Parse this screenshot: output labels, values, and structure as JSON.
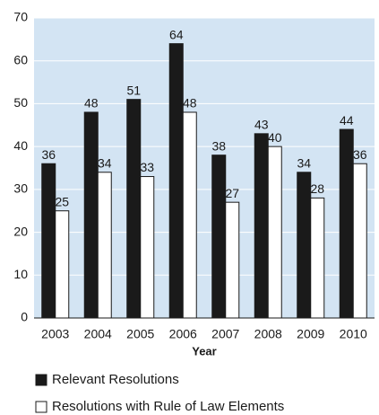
{
  "chart_data": {
    "type": "bar",
    "x_label": "Year",
    "categories": [
      "2003",
      "2004",
      "2005",
      "2006",
      "2007",
      "2008",
      "2009",
      "2010"
    ],
    "series": [
      {
        "name": "Relevant Resolutions",
        "color": "#1a1a1a",
        "values": [
          36,
          48,
          51,
          64,
          38,
          43,
          34,
          44
        ]
      },
      {
        "name": "Resolutions with Rule of Law Elements",
        "color": "#ffffff",
        "values": [
          25,
          34,
          33,
          48,
          27,
          40,
          28,
          36
        ]
      }
    ],
    "ylim": [
      0,
      70
    ],
    "yticks": [
      0,
      10,
      20,
      30,
      40,
      50,
      60,
      70
    ],
    "grid": true,
    "plot_background": "#d3e4f3"
  }
}
